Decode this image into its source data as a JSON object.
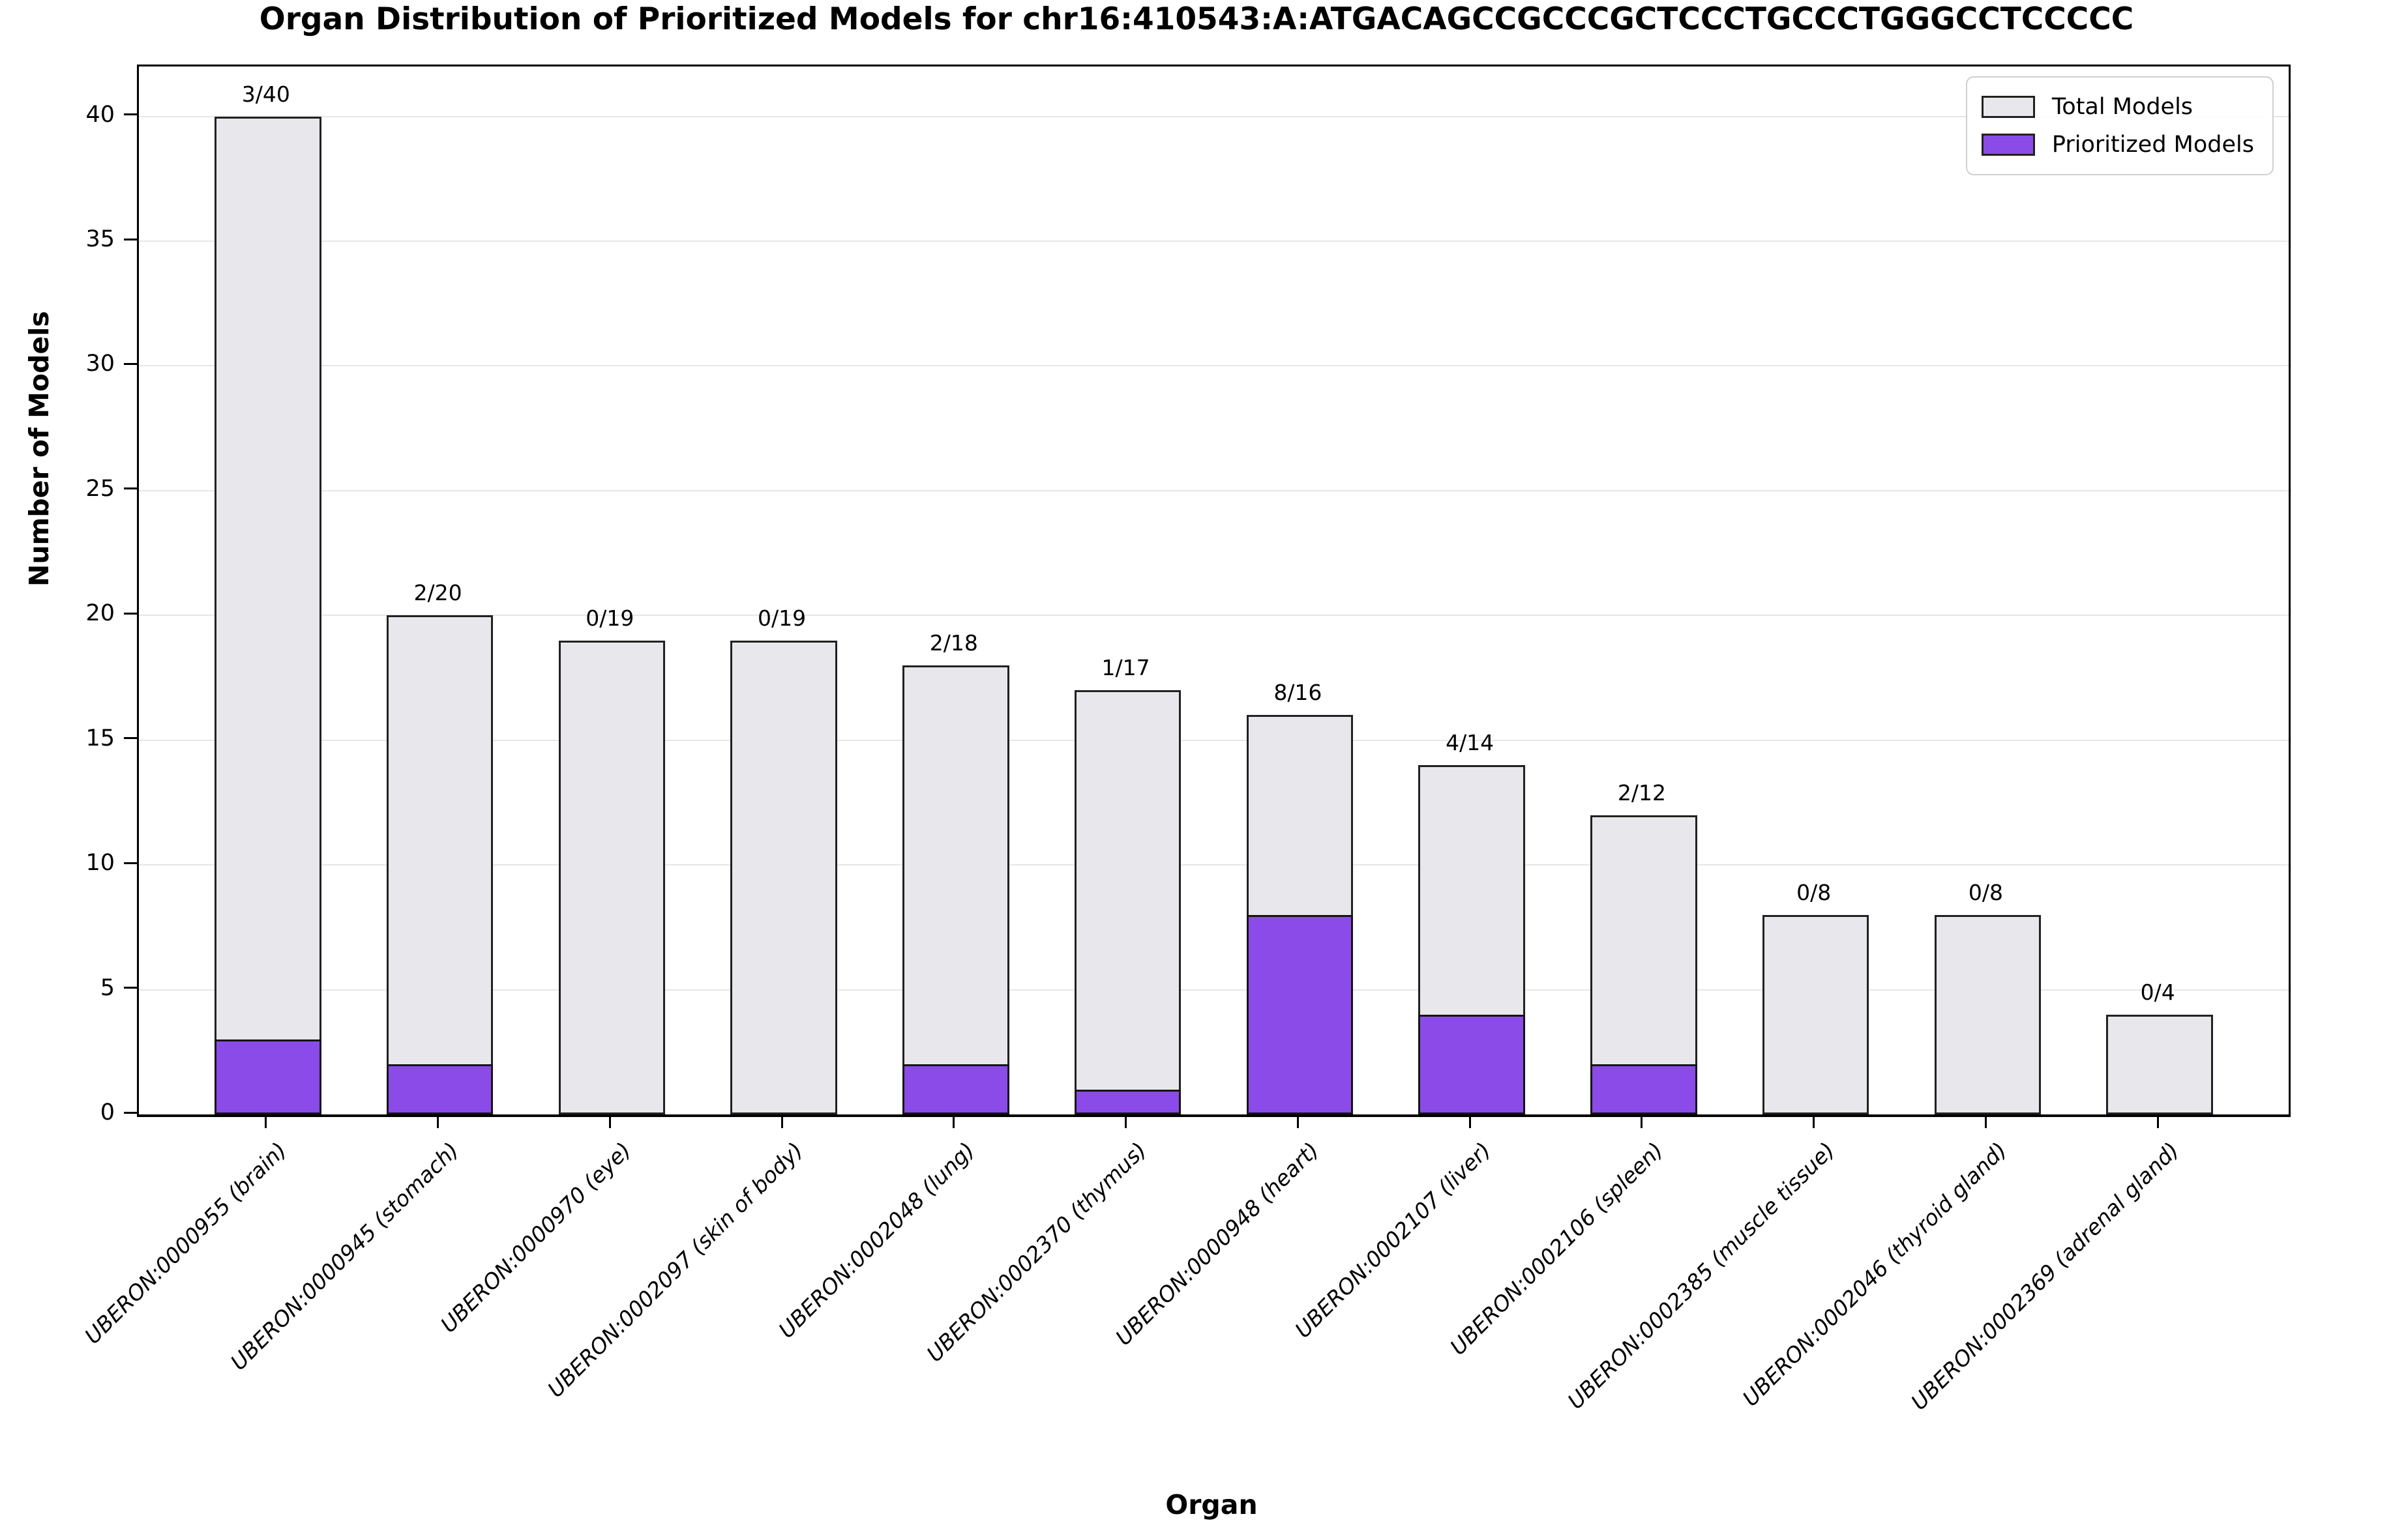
{
  "title": "Organ Distribution of Prioritized Models for chr16:410543:A:ATGACAGCCGCCCGCTCCCTGCCCTGGGCCTCCCCC",
  "xlabel": "Organ",
  "ylabel": "Number of Models",
  "legend": {
    "items": [
      {
        "label": "Total Models",
        "color": "#e8e8ec"
      },
      {
        "label": "Prioritized Models",
        "color": "#8a4be8"
      }
    ]
  },
  "colors": {
    "total_fill": "#e8e8ec",
    "prioritized_fill": "#8a4be8",
    "bar_edge": "#212121",
    "gridline": "#e7e7e7"
  },
  "chart_data": {
    "type": "bar",
    "subtype": "overlaid-total-vs-prioritized",
    "title": "Organ Distribution of Prioritized Models for chr16:410543:A:ATGACAGCCGCCCGCTCCCTGCCCTGGGCCTCCCCC",
    "xlabel": "Organ",
    "ylabel": "Number of Models",
    "grid": "horizontal",
    "legend_position": "upper right",
    "ylim": [
      0,
      42
    ],
    "yticks": [
      0,
      5,
      10,
      15,
      20,
      25,
      30,
      35,
      40
    ],
    "categories": [
      "UBERON:0000955 (brain)",
      "UBERON:0000945 (stomach)",
      "UBERON:0000970 (eye)",
      "UBERON:0002097 (skin of body)",
      "UBERON:0002048 (lung)",
      "UBERON:0002370 (thymus)",
      "UBERON:0000948 (heart)",
      "UBERON:0002107 (liver)",
      "UBERON:0002106 (spleen)",
      "UBERON:0002385 (muscle tissue)",
      "UBERON:0002046 (thyroid gland)",
      "UBERON:0002369 (adrenal gland)"
    ],
    "series": [
      {
        "name": "Total Models",
        "values": [
          40,
          20,
          19,
          19,
          18,
          17,
          16,
          14,
          12,
          8,
          8,
          4
        ]
      },
      {
        "name": "Prioritized Models",
        "values": [
          3,
          2,
          0,
          0,
          2,
          1,
          8,
          4,
          2,
          0,
          0,
          0
        ]
      }
    ],
    "bar_labels": [
      "3/40",
      "2/20",
      "0/19",
      "0/19",
      "2/18",
      "1/17",
      "8/16",
      "4/14",
      "2/12",
      "0/8",
      "0/8",
      "0/4"
    ]
  }
}
